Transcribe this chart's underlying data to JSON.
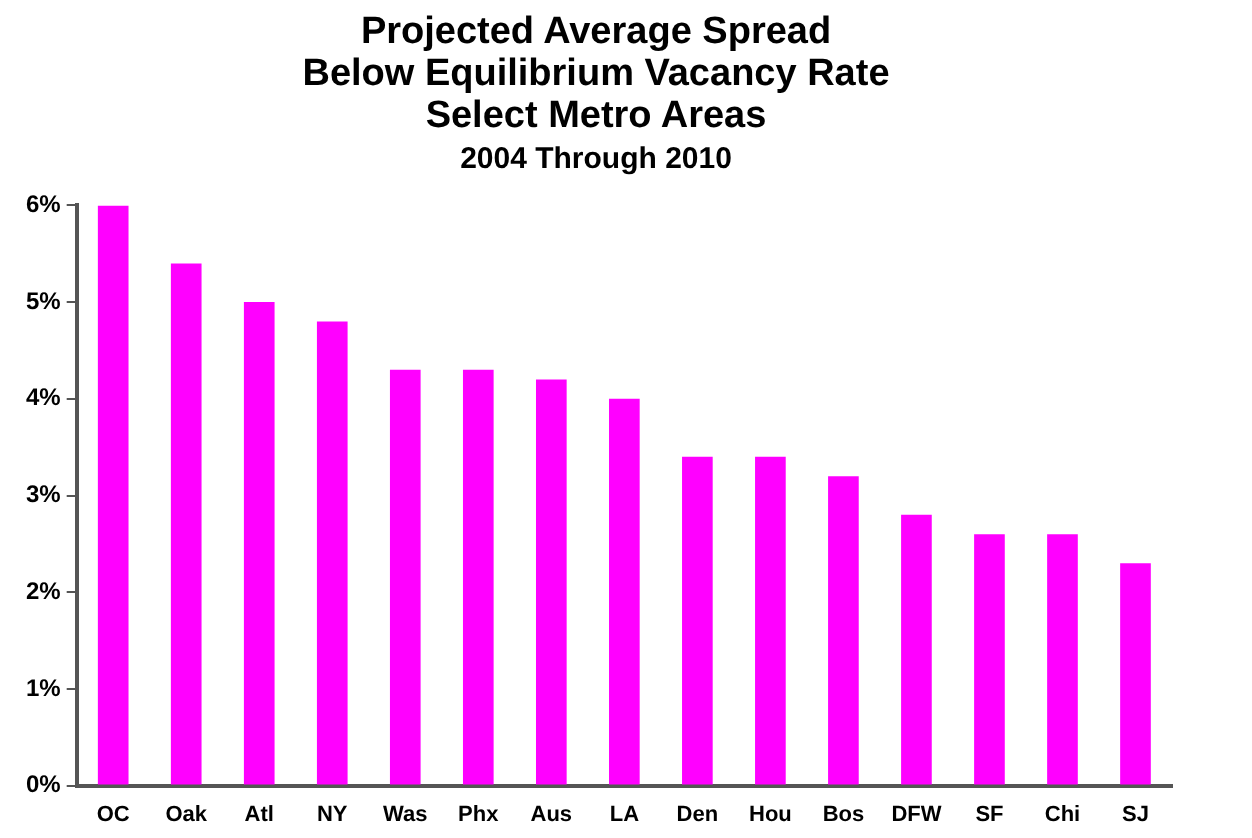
{
  "chart_data": {
    "type": "bar",
    "title": "Projected Average Spread\nBelow Equilibrium Vacancy Rate\nSelect Metro Areas",
    "subtitle": "2004 Through 2010",
    "categories": [
      "OC",
      "Oak",
      "Atl",
      "NY",
      "Was",
      "Phx",
      "Aus",
      "LA",
      "Den",
      "Hou",
      "Bos",
      "DFW",
      "SF",
      "Chi",
      "SJ"
    ],
    "values": [
      6.0,
      5.4,
      5.0,
      4.8,
      4.3,
      4.3,
      4.2,
      4.0,
      3.4,
      3.4,
      3.2,
      2.8,
      2.6,
      2.6,
      2.3
    ],
    "color": "#ff00ff",
    "ylim": [
      0,
      6
    ],
    "yticks": [
      {
        "value": 0,
        "label": "0%"
      },
      {
        "value": 1,
        "label": "1%"
      },
      {
        "value": 2,
        "label": "2%"
      },
      {
        "value": 3,
        "label": "3%"
      },
      {
        "value": 4,
        "label": "4%"
      },
      {
        "value": 5,
        "label": "5%"
      },
      {
        "value": 6,
        "label": "6%"
      }
    ],
    "grid": false,
    "legend": false
  }
}
